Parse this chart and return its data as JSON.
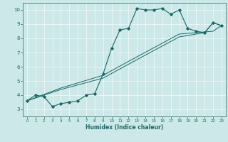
{
  "title": "",
  "xlabel": "Humidex (Indice chaleur)",
  "ylabel": "",
  "background_color": "#cce8e8",
  "line_color": "#1a6666",
  "xlim": [
    -0.5,
    23.5
  ],
  "ylim": [
    2.5,
    10.5
  ],
  "xticks": [
    0,
    1,
    2,
    3,
    4,
    5,
    6,
    7,
    8,
    9,
    10,
    11,
    12,
    13,
    14,
    15,
    16,
    17,
    18,
    19,
    20,
    21,
    22,
    23
  ],
  "yticks": [
    3,
    4,
    5,
    6,
    7,
    8,
    9,
    10
  ],
  "series": [
    [
      0,
      3.6
    ],
    [
      1,
      4.0
    ],
    [
      2,
      3.9
    ],
    [
      3,
      3.2
    ],
    [
      4,
      3.4
    ],
    [
      5,
      3.5
    ],
    [
      6,
      3.6
    ],
    [
      7,
      4.0
    ],
    [
      8,
      4.1
    ],
    [
      9,
      5.5
    ],
    [
      10,
      7.3
    ],
    [
      11,
      8.6
    ],
    [
      12,
      8.7
    ],
    [
      13,
      10.1
    ],
    [
      14,
      10.0
    ],
    [
      15,
      10.0
    ],
    [
      16,
      10.1
    ],
    [
      17,
      9.7
    ],
    [
      18,
      10.0
    ],
    [
      19,
      8.7
    ],
    [
      20,
      8.5
    ],
    [
      21,
      8.4
    ],
    [
      22,
      9.1
    ],
    [
      23,
      8.9
    ]
  ],
  "line2": [
    [
      0,
      3.6
    ],
    [
      4,
      4.4
    ],
    [
      9,
      5.2
    ],
    [
      13,
      6.5
    ],
    [
      18,
      8.1
    ],
    [
      21,
      8.4
    ],
    [
      22,
      9.1
    ],
    [
      23,
      8.9
    ]
  ],
  "line3": [
    [
      0,
      3.6
    ],
    [
      4,
      4.5
    ],
    [
      9,
      5.4
    ],
    [
      13,
      6.7
    ],
    [
      18,
      8.3
    ],
    [
      22,
      8.5
    ],
    [
      23,
      8.9
    ]
  ]
}
